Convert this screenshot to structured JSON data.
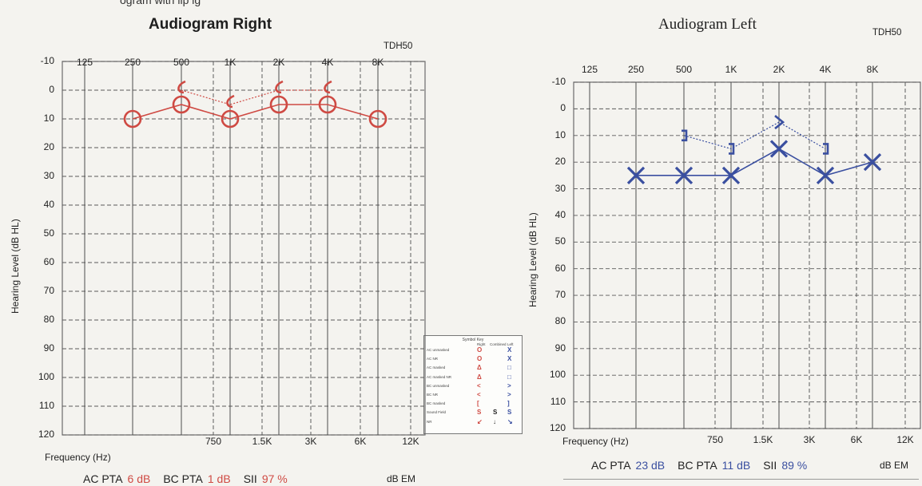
{
  "header_crop_text": "ogram with lip      ig",
  "legend": {
    "title": "Symbol Key",
    "col_right": "Right",
    "col_combined": "Combined",
    "col_left": "Left",
    "rows": [
      {
        "label": "AC unmasked",
        "right": "O",
        "combined": "",
        "left": "X"
      },
      {
        "label": "AC NR",
        "right": "O",
        "combined": "",
        "left": "X"
      },
      {
        "label": "AC masked",
        "right": "Δ",
        "combined": "",
        "left": "□"
      },
      {
        "label": "AC masked NR",
        "right": "Δ",
        "combined": "",
        "left": "□"
      },
      {
        "label": "BC unmasked",
        "right": "<",
        "combined": "",
        "left": ">"
      },
      {
        "label": "BC NR",
        "right": "<",
        "combined": "",
        "left": ">"
      },
      {
        "label": "BC masked",
        "right": "[",
        "combined": "",
        "left": "]"
      },
      {
        "label": "Sound Field",
        "right": "S",
        "combined": "S",
        "left": "S"
      },
      {
        "label": "NR",
        "right": "↙",
        "combined": "↓",
        "left": "↘"
      }
    ],
    "colors": {
      "right": "#cf4a43",
      "combined": "#222222",
      "left": "#3a4fa0"
    }
  },
  "chart_data": [
    {
      "type": "line",
      "title": "Audiogram Right",
      "transducer": "TDH50",
      "ylabel": "Hearing Level (dB HL)",
      "xlabel": "Frequency (Hz)",
      "x_top_ticks": [
        "125",
        "250",
        "500",
        "1K",
        "2K",
        "4K",
        "8K"
      ],
      "x_bottom_ticks": [
        "750",
        "1.5K",
        "3K",
        "6K",
        "12K"
      ],
      "y_ticks": [
        "-10",
        "0",
        "10",
        "20",
        "30",
        "40",
        "50",
        "60",
        "70",
        "80",
        "90",
        "100",
        "110",
        "120"
      ],
      "ylim": [
        -10,
        120
      ],
      "y_inverted": true,
      "grid": true,
      "color": "#cf4a43",
      "series": [
        {
          "name": "AC unmasked",
          "marker": "circle",
          "x": [
            "250",
            "500",
            "1K",
            "2K",
            "4K",
            "8K"
          ],
          "values": [
            10,
            5,
            10,
            5,
            5,
            10
          ]
        },
        {
          "name": "BC unmasked",
          "marker": "bracket-lt",
          "x": [
            "500",
            "1K",
            "2K",
            "4K"
          ],
          "values": [
            0,
            5,
            0,
            0
          ]
        }
      ],
      "summary": {
        "ac_pta_label": "AC PTA",
        "ac_pta": "6 dB",
        "bc_pta_label": "BC PTA",
        "bc_pta": "1 dB",
        "sii_label": "SII",
        "sii": "97 %",
        "unit": "dB EM"
      }
    },
    {
      "type": "line",
      "title": "Audiogram Left",
      "transducer": "TDH50",
      "ylabel": "Hearing Level (dB HL)",
      "xlabel": "Frequency (Hz)",
      "x_top_ticks": [
        "125",
        "250",
        "500",
        "1K",
        "2K",
        "4K",
        "8K"
      ],
      "x_bottom_ticks": [
        "750",
        "1.5K",
        "3K",
        "6K",
        "12K"
      ],
      "y_ticks": [
        "-10",
        "0",
        "10",
        "20",
        "30",
        "40",
        "50",
        "60",
        "70",
        "80",
        "90",
        "100",
        "110",
        "120"
      ],
      "ylim": [
        -10,
        120
      ],
      "y_inverted": true,
      "grid": true,
      "color": "#3a4fa0",
      "series": [
        {
          "name": "AC unmasked",
          "marker": "x",
          "x": [
            "250",
            "500",
            "1K",
            "2K",
            "4K",
            "6K"
          ],
          "values": [
            25,
            25,
            25,
            15,
            25,
            20
          ]
        },
        {
          "name": "BC",
          "marker": "bracket",
          "x": [
            "500",
            "1K",
            "2K",
            "4K"
          ],
          "values": [
            10,
            15,
            5,
            15
          ]
        }
      ],
      "summary": {
        "ac_pta_label": "AC PTA",
        "ac_pta": "23 dB",
        "bc_pta_label": "BC PTA",
        "bc_pta": "11 dB",
        "sii_label": "SII",
        "sii": "89 %",
        "unit": "dB EM"
      }
    }
  ]
}
